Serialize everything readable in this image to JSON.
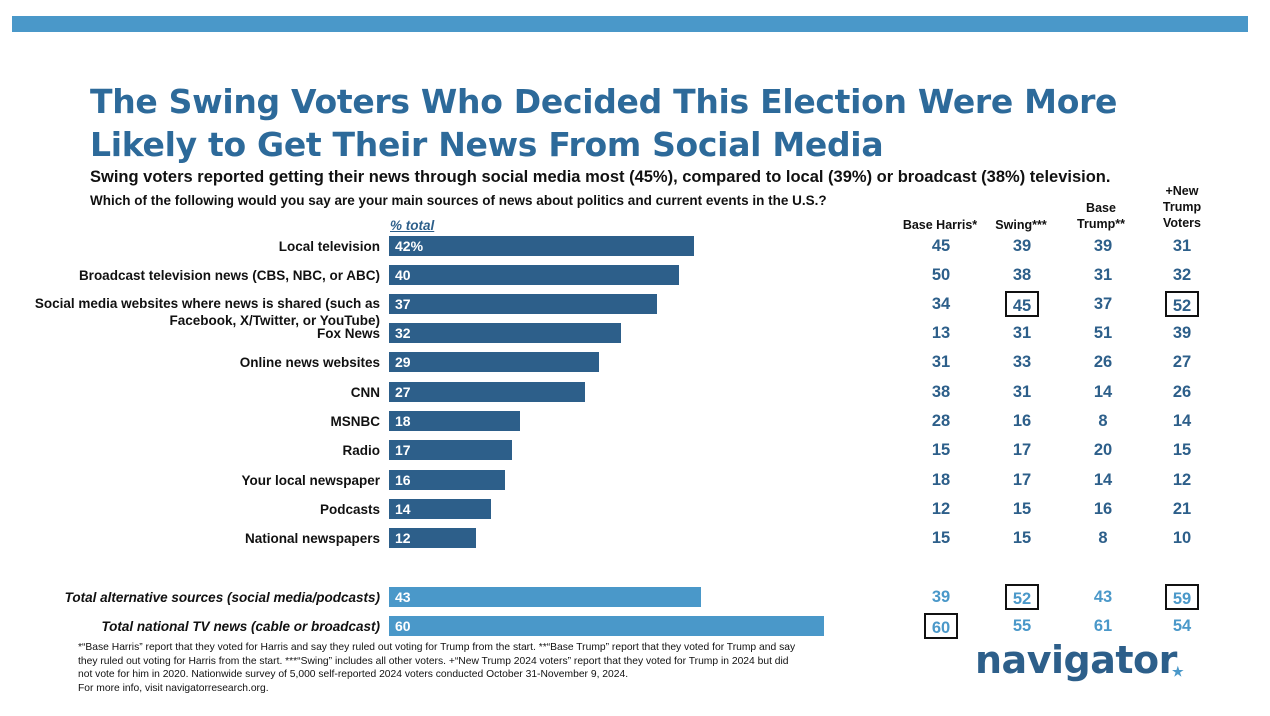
{
  "title": "The Swing Voters Who Decided This Election Were More Likely to Get Their News From Social Media",
  "subtitle": "Swing voters reported getting their news through social media most (45%), compared to local (39%) or broadcast (38%) television.",
  "question": "Which of the following would you say are your main sources of news about politics and current events in the U.S.?",
  "total_label": "% total",
  "columns": [
    "Base Harris*",
    "Swing***",
    "Base Trump**",
    "+New Trump Voters"
  ],
  "colors": {
    "title": "#2d6a9a",
    "bar_main": "#2d5f8a",
    "bar_total": "#4a98c9",
    "cell_text": "#2d5f8a",
    "cell_total_text": "#4a98c9",
    "topbar": "#4a98c9"
  },
  "chart_data": {
    "type": "bar",
    "orientation": "horizontal",
    "xlim": [
      0,
      100
    ],
    "categories": [
      "Local television",
      "Broadcast television news (CBS, NBC, or ABC)",
      "Social media websites where news is shared (such as Facebook, X/Twitter, or YouTube)",
      "Fox News",
      "Online news websites",
      "CNN",
      "MSNBC",
      "Radio",
      "Your local newspaper",
      "Podcasts",
      "National newspapers",
      "Total alternative sources (social media/podcasts)",
      "Total national TV news (cable or broadcast)"
    ],
    "values": [
      42,
      40,
      37,
      32,
      29,
      27,
      18,
      17,
      16,
      14,
      12,
      43,
      60
    ],
    "value_labels": [
      "42%",
      "40",
      "37",
      "32",
      "29",
      "27",
      "18",
      "17",
      "16",
      "14",
      "12",
      "43",
      "60"
    ],
    "table": [
      [
        45,
        39,
        39,
        31
      ],
      [
        50,
        38,
        31,
        32
      ],
      [
        34,
        45,
        37,
        52
      ],
      [
        13,
        31,
        51,
        39
      ],
      [
        31,
        33,
        26,
        27
      ],
      [
        38,
        31,
        14,
        26
      ],
      [
        28,
        16,
        8,
        14
      ],
      [
        15,
        17,
        20,
        15
      ],
      [
        18,
        17,
        14,
        12
      ],
      [
        12,
        15,
        16,
        21
      ],
      [
        15,
        15,
        8,
        10
      ],
      [
        39,
        52,
        43,
        59
      ],
      [
        60,
        55,
        61,
        54
      ]
    ],
    "highlighted_cells": [
      [
        2,
        1
      ],
      [
        2,
        3
      ],
      [
        11,
        1
      ],
      [
        11,
        3
      ],
      [
        12,
        0
      ]
    ]
  },
  "footnote": {
    "line1": "*“Base Harris” report that they voted for Harris and say they ruled out voting for Trump from the start. **“Base Trump” report that they voted for Trump and say",
    "line2": "they ruled out voting for Harris from the start. ***“Swing” includes all other voters. +“New Trump 2024 voters” report that they voted for Trump in 2024 but did",
    "line3": "not vote for him in 2020. Nationwide survey of 5,000 self-reported 2024 voters conducted October 31-November 9, 2024.",
    "line4": "For more info, visit navigatorresearch.org."
  },
  "logo": "navigator"
}
